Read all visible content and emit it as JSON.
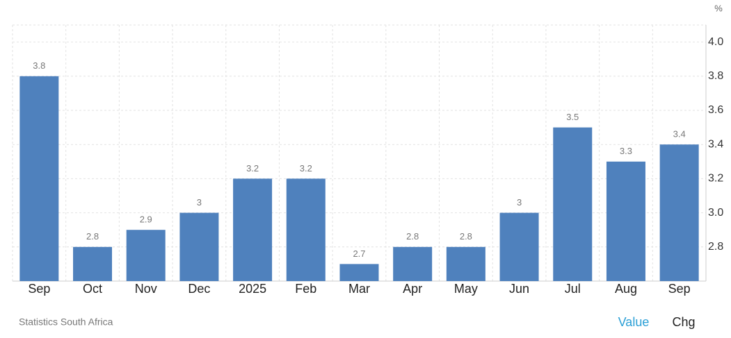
{
  "chart_data": {
    "type": "bar",
    "unit": "%",
    "source": "Statistics South Africa",
    "categories": [
      "Sep",
      "Oct",
      "Nov",
      "Dec",
      "2025",
      "Feb",
      "Mar",
      "Apr",
      "May",
      "Jun",
      "Jul",
      "Aug",
      "Sep"
    ],
    "values": [
      3.8,
      2.8,
      2.9,
      3,
      3.2,
      3.2,
      2.7,
      2.8,
      2.8,
      3,
      3.5,
      3.3,
      3.4
    ],
    "color": "#4f81bd",
    "ylim": [
      2.6,
      4.1
    ],
    "yticks": [
      2.8,
      {
        "value": 3,
        "label": "3.0"
      },
      3.2,
      3.4,
      3.6,
      3.8,
      {
        "value": 4,
        "label": "4.0"
      }
    ],
    "grid": true
  },
  "controls": {
    "value": "Value",
    "chg": "Chg"
  }
}
